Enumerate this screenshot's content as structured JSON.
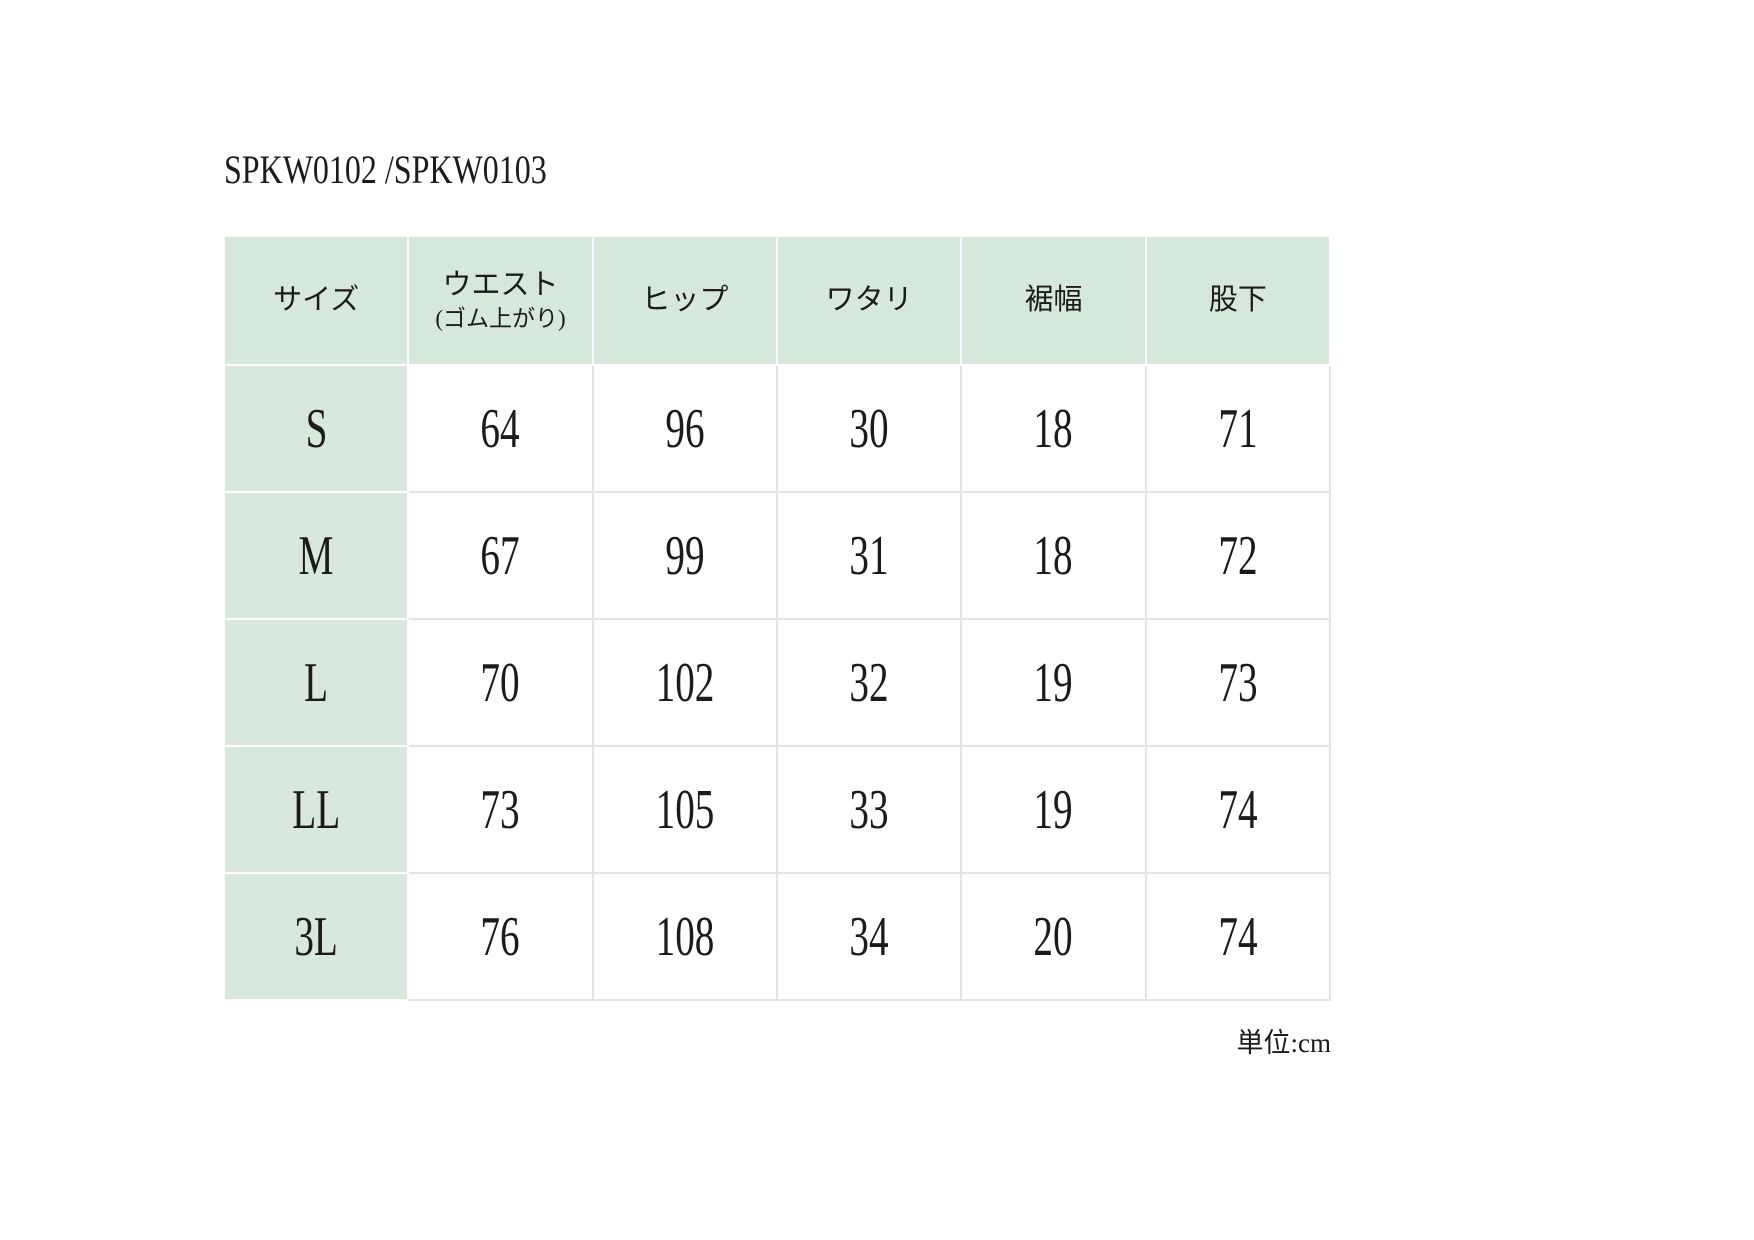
{
  "page": {
    "title": "SPKW0102 /SPKW0103",
    "unit_note": "単位:cm"
  },
  "table": {
    "columns": [
      "サイズ",
      "ウエスト",
      "ヒップ",
      "ワタリ",
      "裾幅",
      "股下"
    ],
    "waist_sub": "(ゴム上がり)",
    "rows": [
      {
        "size": "S",
        "waist": "64",
        "hip": "96",
        "watari": "30",
        "hem": "18",
        "inseam": "71"
      },
      {
        "size": "M",
        "waist": "67",
        "hip": "99",
        "watari": "31",
        "hem": "18",
        "inseam": "72"
      },
      {
        "size": "L",
        "waist": "70",
        "hip": "102",
        "watari": "32",
        "hem": "19",
        "inseam": "73"
      },
      {
        "size": "LL",
        "waist": "73",
        "hip": "105",
        "watari": "33",
        "hem": "19",
        "inseam": "74"
      },
      {
        "size": "3L",
        "waist": "76",
        "hip": "108",
        "watari": "34",
        "hem": "20",
        "inseam": "74"
      }
    ]
  },
  "colors": {
    "header_bg": "#d6e7dc",
    "size_column_bg": "#d8e8dd",
    "cell_border": "#e4e4e4",
    "text": "#1b1b1b",
    "page_bg": "#ffffff"
  },
  "chart_data": {
    "type": "table",
    "title": "SPKW0102 /SPKW0103",
    "columns": [
      "サイズ",
      "ウエスト(ゴム上がり)",
      "ヒップ",
      "ワタリ",
      "裾幅",
      "股下"
    ],
    "rows": [
      [
        "S",
        64,
        96,
        30,
        18,
        71
      ],
      [
        "M",
        67,
        99,
        31,
        18,
        72
      ],
      [
        "L",
        70,
        102,
        32,
        19,
        73
      ],
      [
        "LL",
        73,
        105,
        33,
        19,
        74
      ],
      [
        "3L",
        76,
        108,
        34,
        20,
        74
      ]
    ],
    "unit": "cm",
    "layout_hints": {
      "header_fill": "light-green",
      "first_column_fill": "light-green",
      "data_cells_fill": "white",
      "grid": "light-gray-borders"
    }
  }
}
